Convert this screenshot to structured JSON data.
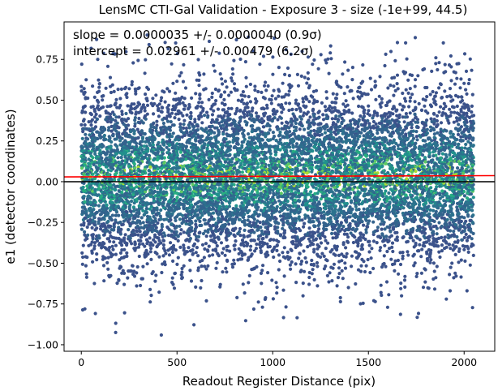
{
  "chart_data": {
    "type": "scatter",
    "title": "LensMC CTI-Gal Validation - Exposure 3 - size (-1e+99, 44.5)",
    "xlabel": "Readout Register Distance (pix)",
    "ylabel": "e1 (detector coordinates)",
    "xlim": [
      -90,
      2160
    ],
    "ylim": [
      -1.04,
      0.98
    ],
    "xticks": [
      0,
      500,
      1000,
      1500,
      2000
    ],
    "xtick_labels": [
      "0",
      "500",
      "1000",
      "1500",
      "2000"
    ],
    "yticks": [
      -1.0,
      -0.75,
      -0.5,
      -0.25,
      0.0,
      0.25,
      0.5,
      0.75
    ],
    "ytick_labels": [
      "−1.00",
      "−0.75",
      "−0.50",
      "−0.25",
      "0.00",
      "0.25",
      "0.50",
      "0.75"
    ],
    "grid": false,
    "annotations": [
      "slope = 0.0000035 +/- 0.0000040 (0.9σ)",
      "intercept = 0.02961 +/- 0.00479 (6.2σ)"
    ],
    "points_cloud": {
      "x_range": [
        0,
        2050
      ],
      "count": 9000,
      "e1_mean": 0.03,
      "e1_spread": 0.27,
      "colormap": "viridis (colour by local point density)"
    },
    "reference_lines": [
      {
        "name": "fit",
        "slope": 3.5e-06,
        "intercept": 0.02961,
        "color": "#ff0000"
      },
      {
        "name": "zero",
        "y": 0.0,
        "color": "#000000"
      }
    ]
  }
}
